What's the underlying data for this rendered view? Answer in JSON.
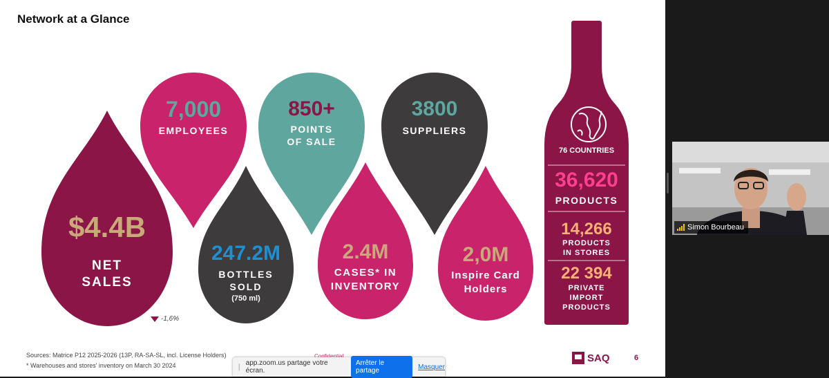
{
  "slide": {
    "title": "Network at a Glance",
    "net_sales": {
      "value": "$4.4B",
      "line1": "NET",
      "line2": "SALES",
      "change": "-1,6%"
    },
    "employees": {
      "value": "7,000",
      "label": "EMPLOYEES"
    },
    "points_of_sale": {
      "value": "850+",
      "line1": "POINTS",
      "line2": "OF SALE"
    },
    "suppliers": {
      "value": "3800",
      "label": "SUPPLIERS"
    },
    "bottles": {
      "value": "247.2M",
      "line1": "BOTTLES",
      "line2": "SOLD",
      "line3": "(750 ml)"
    },
    "cases": {
      "value": "2.4M",
      "line1": "CASES* IN",
      "line2": "INVENTORY"
    },
    "inspire": {
      "value": "2,0M",
      "line1": "Inspire Card",
      "line2": "Holders"
    },
    "bottle": {
      "countries": "76 COUNTRIES",
      "products_value": "36,620",
      "products_label": "PRODUCTS",
      "stores_value": "14,266",
      "stores_line1": "PRODUCTS",
      "stores_line2": "IN STORES",
      "private_value": "22 394",
      "private_line1": "PRIVATE",
      "private_line2": "IMPORT",
      "private_line3": "PRODUCTS"
    },
    "sources_line1": "Sources: Matrice P12 2025-2026 (13P, RA-SA-SL, incl. License Holders)",
    "sources_line2": "* Warehouses and stores' inventory on March 30 2024",
    "confidential": "Confidential",
    "logo": "SAQ",
    "page_number": "6"
  },
  "colors": {
    "wine": "#8a1546",
    "pink": "#c8236b",
    "teal": "#5fa69e",
    "charcoal": "#3d3b3c",
    "gold": "#c9a97a",
    "blue": "#1f8fd0",
    "hot_pink": "#ff3f8f",
    "peach": "#ffb07a"
  },
  "share_bar": {
    "message": "app.zoom.us partage votre écran.",
    "stop_label": "Arrêter le partage",
    "hide_label": "Masquer"
  },
  "participant": {
    "name": "Simon Bourbeau",
    "icon": "signal-strength-icon"
  }
}
